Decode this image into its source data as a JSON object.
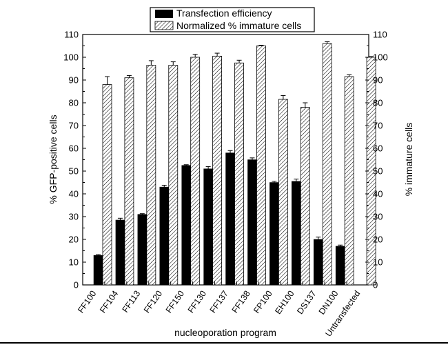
{
  "chart_data": {
    "type": "bar",
    "xlabel": "nucleoporation program",
    "ylabel_left": "% GFP-positive cells",
    "ylabel_right": "% immature cells",
    "ylim": [
      0,
      110
    ],
    "yticks": [
      0,
      10,
      20,
      30,
      40,
      50,
      60,
      70,
      80,
      90,
      100,
      110
    ],
    "legend_position": "top-center",
    "categories": [
      "FF100",
      "FF104",
      "FF113",
      "FF120",
      "FF150",
      "FF130",
      "FF137",
      "FF138",
      "FP100",
      "EH100",
      "DS137",
      "DN100",
      "Untransfected"
    ],
    "series": [
      {
        "name": "Transfection efficiency",
        "fill": "solid-black",
        "color": "#000000",
        "values": [
          13,
          28.5,
          31,
          43,
          52.5,
          51,
          58,
          55,
          45,
          45.5,
          20,
          17,
          null
        ],
        "errors": [
          0.3,
          0.8,
          0.3,
          0.8,
          0.3,
          1,
          1,
          0.8,
          0.5,
          1,
          1,
          0.5,
          null
        ]
      },
      {
        "name": "Normalized % immature cells",
        "fill": "diagonal-hatch",
        "color": "#000000",
        "values": [
          88,
          91,
          96.5,
          96.5,
          100,
          100.5,
          97.5,
          105,
          81.5,
          78,
          106,
          91.5,
          100
        ],
        "errors": [
          3.5,
          1,
          2,
          1.5,
          1.3,
          1.3,
          1.2,
          0.3,
          1.7,
          2,
          0.8,
          0.8,
          0.3
        ]
      }
    ]
  }
}
